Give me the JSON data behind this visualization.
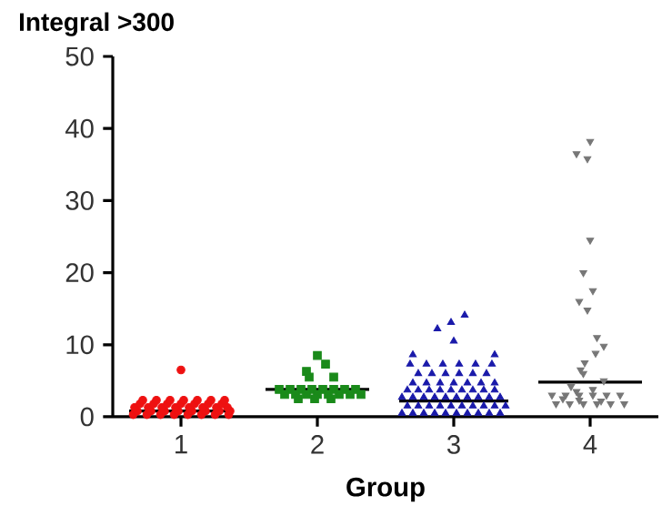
{
  "chart_data": {
    "type": "scatter",
    "ylabel": "Integral >300",
    "xlabel": "Group",
    "xlim": [
      0.5,
      4.5
    ],
    "xticks": [
      1,
      2,
      3,
      4
    ],
    "ylim": [
      0,
      50
    ],
    "yticks": [
      0,
      10,
      20,
      30,
      40,
      50
    ],
    "series": [
      {
        "color": "#ee1111",
        "marker": "circle",
        "x": [
          0.65,
          0.75,
          0.85,
          0.95,
          1.05,
          1.15,
          1.25,
          1.35,
          0.68,
          0.78,
          0.88,
          0.98,
          1.08,
          1.18,
          1.28,
          1.36,
          0.66,
          0.76,
          0.86,
          0.96,
          1.06,
          1.16,
          1.26,
          1.34,
          0.7,
          0.8,
          0.9,
          1.0,
          1.1,
          1.2,
          1.3,
          0.72,
          0.82,
          0.92,
          1.02,
          1.12,
          1.22,
          1.32,
          1.0
        ],
        "values": [
          0.3,
          0.3,
          0.3,
          0.3,
          0.3,
          0.3,
          0.3,
          0.3,
          0.8,
          0.8,
          0.8,
          0.8,
          0.8,
          0.8,
          0.8,
          0.8,
          1.3,
          1.3,
          1.3,
          1.3,
          1.3,
          1.3,
          1.3,
          1.3,
          1.8,
          1.8,
          1.8,
          1.8,
          1.8,
          1.8,
          1.8,
          2.3,
          2.3,
          2.3,
          2.3,
          2.3,
          2.3,
          2.3,
          6.5
        ]
      },
      {
        "color": "#1a8a1a",
        "marker": "square",
        "x": [
          1.72,
          1.8,
          1.88,
          1.96,
          2.04,
          2.12,
          2.2,
          2.28,
          1.76,
          1.84,
          1.92,
          2.0,
          2.08,
          2.16,
          2.24,
          2.32,
          1.86,
          1.98,
          2.1,
          1.94,
          2.12,
          1.92,
          2.06,
          2.0
        ],
        "values": [
          3.8,
          3.8,
          3.8,
          3.8,
          3.8,
          3.8,
          3.8,
          3.8,
          3.1,
          3.1,
          3.1,
          3.1,
          3.1,
          3.1,
          3.1,
          3.1,
          2.5,
          2.5,
          2.5,
          5.5,
          5.5,
          6.3,
          7.3,
          8.5
        ]
      },
      {
        "color": "#1a1aaa",
        "marker": "triangle",
        "x": [
          2.62,
          2.7,
          2.78,
          2.86,
          2.94,
          3.02,
          3.1,
          3.18,
          3.26,
          3.34,
          2.66,
          2.74,
          2.82,
          2.9,
          2.98,
          3.06,
          3.14,
          3.22,
          3.3,
          3.38,
          2.62,
          2.7,
          2.78,
          2.86,
          2.94,
          3.02,
          3.1,
          3.18,
          3.26,
          3.34,
          2.66,
          2.74,
          2.82,
          2.9,
          2.98,
          3.06,
          3.14,
          3.22,
          3.3,
          2.7,
          2.8,
          2.9,
          3.0,
          3.1,
          3.2,
          3.3,
          2.74,
          2.84,
          2.94,
          3.04,
          3.14,
          3.24,
          2.68,
          2.8,
          2.92,
          3.04,
          3.16,
          3.28,
          2.7,
          3.3,
          3.0,
          2.88,
          2.98,
          3.08
        ],
        "values": [
          0.5,
          0.5,
          0.5,
          0.5,
          0.5,
          0.5,
          0.5,
          0.5,
          0.5,
          0.5,
          1.5,
          1.5,
          1.5,
          1.5,
          1.5,
          1.5,
          1.5,
          1.5,
          1.5,
          1.5,
          2.7,
          2.7,
          2.7,
          2.7,
          2.7,
          2.7,
          2.7,
          2.7,
          2.7,
          2.7,
          3.7,
          3.7,
          3.7,
          3.7,
          3.7,
          3.7,
          3.7,
          3.7,
          3.7,
          4.7,
          4.7,
          4.7,
          4.7,
          4.7,
          4.7,
          4.7,
          6.0,
          6.0,
          6.0,
          6.0,
          6.0,
          6.0,
          7.3,
          7.3,
          7.3,
          7.3,
          7.3,
          7.3,
          8.6,
          8.6,
          10.5,
          12.2,
          13.1,
          14.1
        ]
      },
      {
        "color": "#777777",
        "marker": "triangle",
        "x": [
          4.0,
          3.9,
          3.98,
          4.0,
          3.95,
          4.02,
          3.92,
          3.98,
          4.05,
          4.1,
          4.04,
          3.96,
          3.93,
          3.95,
          4.1,
          3.86,
          3.9,
          4.02,
          3.72,
          3.82,
          3.92,
          4.02,
          4.12,
          4.22,
          3.75,
          3.85,
          3.95,
          4.05,
          4.15,
          4.25,
          3.8,
          3.92,
          4.08
        ],
        "values": [
          38.2,
          36.5,
          35.8,
          24.5,
          20.0,
          17.5,
          16.0,
          14.8,
          11.0,
          9.8,
          8.8,
          7.5,
          6.5,
          6.0,
          5.0,
          4.2,
          3.5,
          3.8,
          3.0,
          3.0,
          3.0,
          3.0,
          3.0,
          3.0,
          1.8,
          1.8,
          1.8,
          1.8,
          1.8,
          1.8,
          2.5,
          2.3,
          2.2
        ]
      },
      {
        "type": "line",
        "color": "#000000",
        "x": [
          0.62,
          1.38
        ],
        "values": [
          0.8,
          0.8
        ]
      },
      {
        "type": "line",
        "color": "#000000",
        "x": [
          1.62,
          2.38
        ],
        "values": [
          3.8,
          3.8
        ]
      },
      {
        "type": "line",
        "color": "#000000",
        "x": [
          2.6,
          3.4
        ],
        "values": [
          2.2,
          2.2
        ]
      },
      {
        "type": "line",
        "color": "#000000",
        "x": [
          3.62,
          4.38
        ],
        "values": [
          4.8,
          4.8
        ]
      }
    ]
  }
}
